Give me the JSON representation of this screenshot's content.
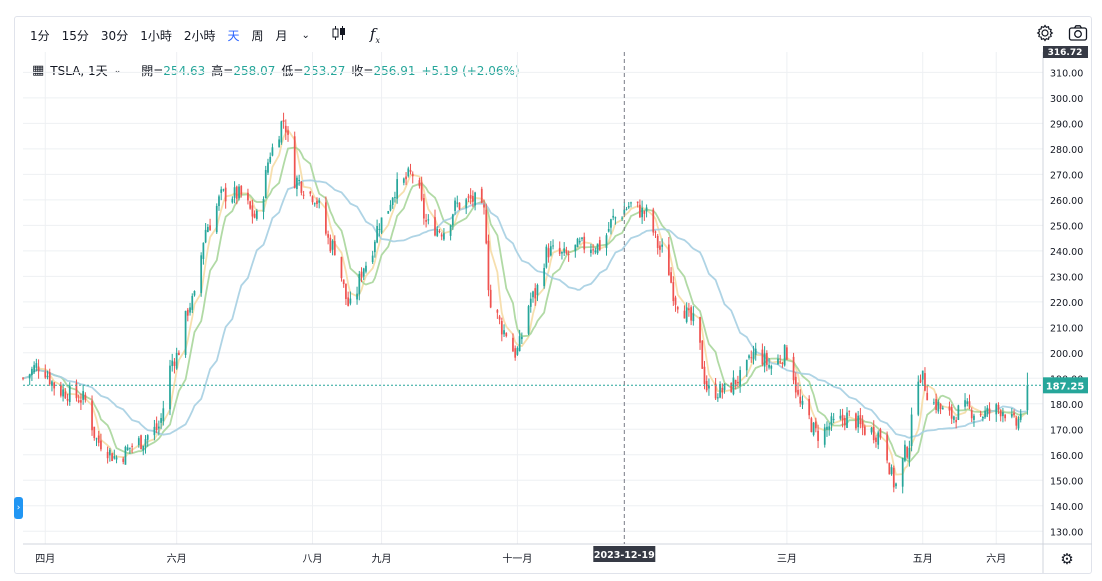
{
  "toolbar": {
    "timeframes": [
      "1分",
      "15分",
      "30分",
      "1小時",
      "2小時",
      "天",
      "周",
      "月"
    ],
    "active_timeframe": "天",
    "dropdown_icon": "chevron-down-icon",
    "chart_type_icon": "candlestick-icon",
    "indicators_icon": "function-icon",
    "settings_icon": "gear-icon",
    "snapshot_icon": "camera-icon"
  },
  "legend": {
    "symbol": "TSLA, 1天",
    "open_label": "開=",
    "open": "254.63",
    "high_label": "高=",
    "high": "258.07",
    "low_label": "低=",
    "low": "253.27",
    "close_label": "收=",
    "close": "256.91",
    "change": "+5.19 (+2.06%)"
  },
  "colors": {
    "up": "#26a69a",
    "down": "#ef5350",
    "ma_fast": "#f5dca5",
    "ma_mid": "#a9d69b",
    "ma_slow": "#a6cfe2",
    "grid": "#eef0f3",
    "accent": "#2962ff"
  },
  "crosshair": {
    "date_label": "2023-12-19",
    "price_top_label": "316.72"
  },
  "last_price_label": "187.25",
  "chart_data": {
    "type": "candlestick",
    "symbol": "TSLA",
    "interval": "1天",
    "y_ticks": [
      130,
      140,
      150,
      160,
      170,
      180,
      190,
      200,
      210,
      220,
      230,
      240,
      250,
      260,
      270,
      280,
      290,
      300,
      310
    ],
    "y_tick_labels": [
      "130.00",
      "140.00",
      "150.00",
      "160.00",
      "170.00",
      "180.00",
      "190.00",
      "200.00",
      "210.00",
      "220.00",
      "230.00",
      "240.00",
      "250.00",
      "260.00",
      "270.00",
      "280.00",
      "290.00",
      "300.00",
      "310.00"
    ],
    "ylim": [
      125,
      318
    ],
    "x_tick_labels": [
      "四月",
      "六月",
      "八月",
      "九月",
      "十一月",
      "三月",
      "五月",
      "六月"
    ],
    "x_tick_dates": [
      "2023-04-03",
      "2023-06-01",
      "2023-08-01",
      "2023-09-01",
      "2023-11-01",
      "2024-03-01",
      "2024-05-01",
      "2024-06-03"
    ],
    "xlim": [
      "2023-03-24",
      "2024-06-24"
    ],
    "grid": true,
    "last_price": 187.25,
    "close_anchors": [
      [
        "2023-03-24",
        190
      ],
      [
        "2023-03-31",
        195
      ],
      [
        "2023-04-10",
        185
      ],
      [
        "2023-04-20",
        182
      ],
      [
        "2023-04-27",
        165
      ],
      [
        "2023-05-05",
        159
      ],
      [
        "2023-05-15",
        165
      ],
      [
        "2023-05-23",
        170
      ],
      [
        "2023-05-31",
        198
      ],
      [
        "2023-06-08",
        220
      ],
      [
        "2023-06-15",
        250
      ],
      [
        "2023-06-22",
        262
      ],
      [
        "2023-06-29",
        262
      ],
      [
        "2023-07-07",
        253
      ],
      [
        "2023-07-14",
        280
      ],
      [
        "2023-07-19",
        291
      ],
      [
        "2023-07-24",
        268
      ],
      [
        "2023-08-01",
        262
      ],
      [
        "2023-08-10",
        242
      ],
      [
        "2023-08-18",
        218
      ],
      [
        "2023-08-25",
        235
      ],
      [
        "2023-09-01",
        252
      ],
      [
        "2023-09-08",
        265
      ],
      [
        "2023-09-15",
        270
      ],
      [
        "2023-09-22",
        250
      ],
      [
        "2023-09-29",
        248
      ],
      [
        "2023-10-05",
        258
      ],
      [
        "2023-10-12",
        260
      ],
      [
        "2023-10-17",
        255
      ],
      [
        "2023-10-20",
        218
      ],
      [
        "2023-10-27",
        208
      ],
      [
        "2023-10-31",
        200
      ],
      [
        "2023-11-08",
        222
      ],
      [
        "2023-11-15",
        240
      ],
      [
        "2023-11-22",
        238
      ],
      [
        "2023-11-30",
        242
      ],
      [
        "2023-12-08",
        242
      ],
      [
        "2023-12-15",
        253
      ],
      [
        "2023-12-22",
        258
      ],
      [
        "2023-12-28",
        255
      ],
      [
        "2024-01-05",
        240
      ],
      [
        "2024-01-12",
        220
      ],
      [
        "2024-01-19",
        212
      ],
      [
        "2024-01-26",
        185
      ],
      [
        "2024-02-02",
        185
      ],
      [
        "2024-02-09",
        190
      ],
      [
        "2024-02-16",
        200
      ],
      [
        "2024-02-23",
        195
      ],
      [
        "2024-03-01",
        200
      ],
      [
        "2024-03-08",
        178
      ],
      [
        "2024-03-15",
        168
      ],
      [
        "2024-03-22",
        172
      ],
      [
        "2024-03-29",
        175
      ],
      [
        "2024-04-05",
        170
      ],
      [
        "2024-04-12",
        168
      ],
      [
        "2024-04-19",
        148
      ],
      [
        "2024-04-24",
        162
      ],
      [
        "2024-04-29",
        192
      ],
      [
        "2024-05-06",
        180
      ],
      [
        "2024-05-13",
        175
      ],
      [
        "2024-05-20",
        178
      ],
      [
        "2024-05-28",
        176
      ],
      [
        "2024-06-05",
        178
      ],
      [
        "2024-06-12",
        172
      ],
      [
        "2024-06-17",
        187.25
      ]
    ]
  }
}
